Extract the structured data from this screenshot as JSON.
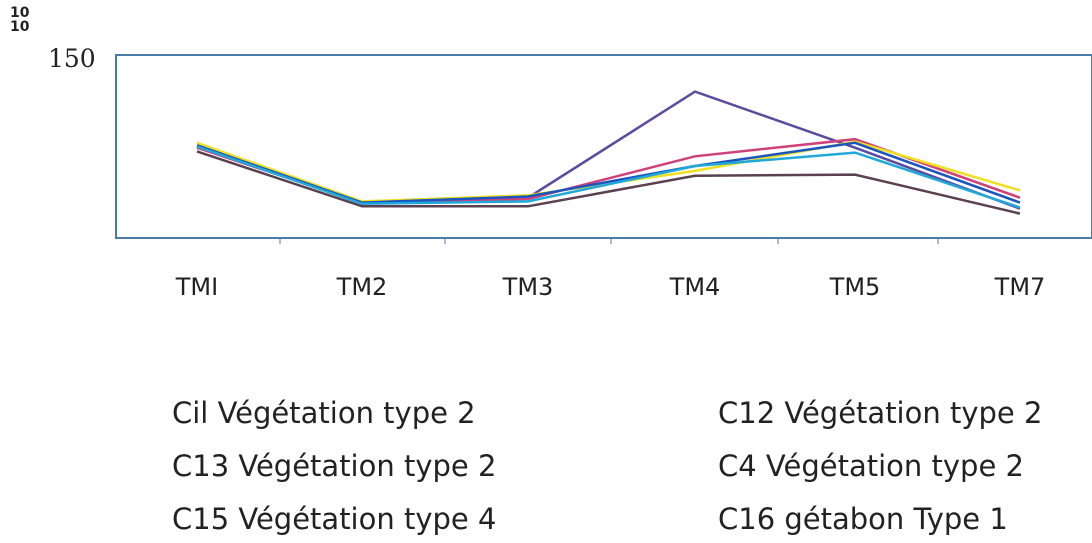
{
  "corner_label": [
    "10",
    "10"
  ],
  "chart_data": {
    "type": "line",
    "categories": [
      "TMI",
      "TM2",
      "TM3",
      "TM4",
      "TM5",
      "TM7"
    ],
    "y_top_label": "150",
    "ylim": [
      0,
      150
    ],
    "grid": false,
    "legend_position": "bottom",
    "series": [
      {
        "name": "Cil Végétation type 2",
        "color": "#5a4aa0",
        "values": [
          75,
          29,
          33,
          120,
          74,
          24
        ]
      },
      {
        "name": "C12 Végétation type 2",
        "color": "#d0407a",
        "values": [
          74,
          29,
          32,
          67,
          81,
          33
        ]
      },
      {
        "name": "C13 Végétation type 2",
        "color": "#f0e020",
        "values": [
          78,
          30,
          35,
          55,
          79,
          39
        ]
      },
      {
        "name": "C4 Végétation type 2",
        "color": "#1a55c0",
        "values": [
          76,
          29,
          34,
          59,
          78,
          29
        ]
      },
      {
        "name": "C15 Végétation type 4",
        "color": "#20a8d8",
        "values": [
          75,
          28,
          30,
          59,
          70,
          25
        ]
      },
      {
        "name": "C16 gétabon Type 1",
        "color": "#5a4050",
        "values": [
          71,
          26,
          26,
          51,
          52,
          20
        ]
      }
    ]
  }
}
